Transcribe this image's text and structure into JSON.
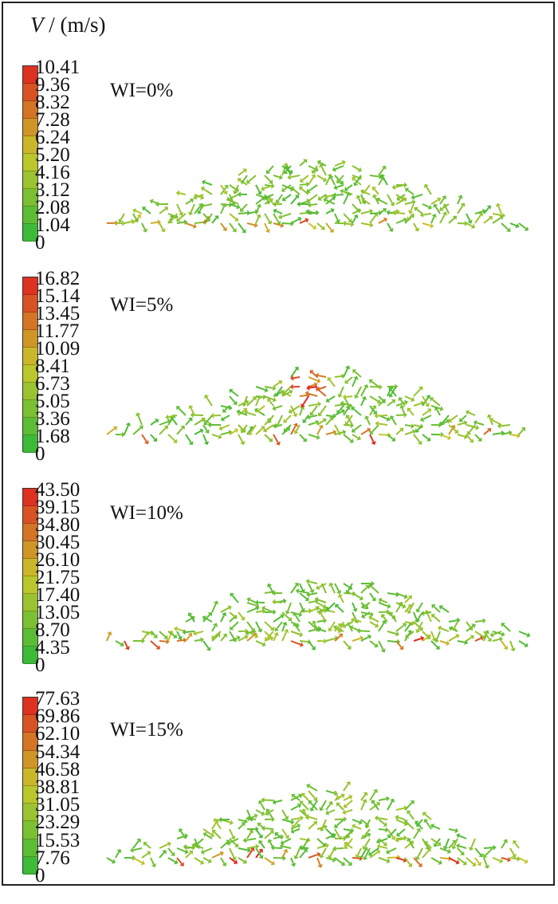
{
  "title_units": {
    "symbol": "V",
    "unit": " / (m/s)"
  },
  "panels": [
    {
      "label": "WI=0%",
      "ticks": [
        "10.41",
        "9.36",
        "8.32",
        "7.28",
        "6.24",
        "5.20",
        "4.16",
        "3.12",
        "2.08",
        "1.04",
        "0"
      ],
      "vmax": 10.41
    },
    {
      "label": "WI=5%",
      "ticks": [
        "16.82",
        "15.14",
        "13.45",
        "11.77",
        "10.09",
        "8.41",
        "6.73",
        "5.05",
        "3.36",
        "1.68",
        "0"
      ],
      "vmax": 16.82
    },
    {
      "label": "WI=10%",
      "ticks": [
        "43.50",
        "39.15",
        "34.80",
        "30.45",
        "26.10",
        "21.75",
        "17.40",
        "13.05",
        "8.70",
        "4.35",
        "0"
      ],
      "vmax": 43.5
    },
    {
      "label": "WI=15%",
      "ticks": [
        "77.63",
        "69.86",
        "62.10",
        "54.34",
        "46.58",
        "38.81",
        "31.05",
        "23.29",
        "15.53",
        "7.76",
        "0"
      ],
      "vmax": 77.63
    }
  ],
  "colors": {
    "low": "#2db83a",
    "mid": "#c8c82a",
    "high": "#e02020"
  }
}
